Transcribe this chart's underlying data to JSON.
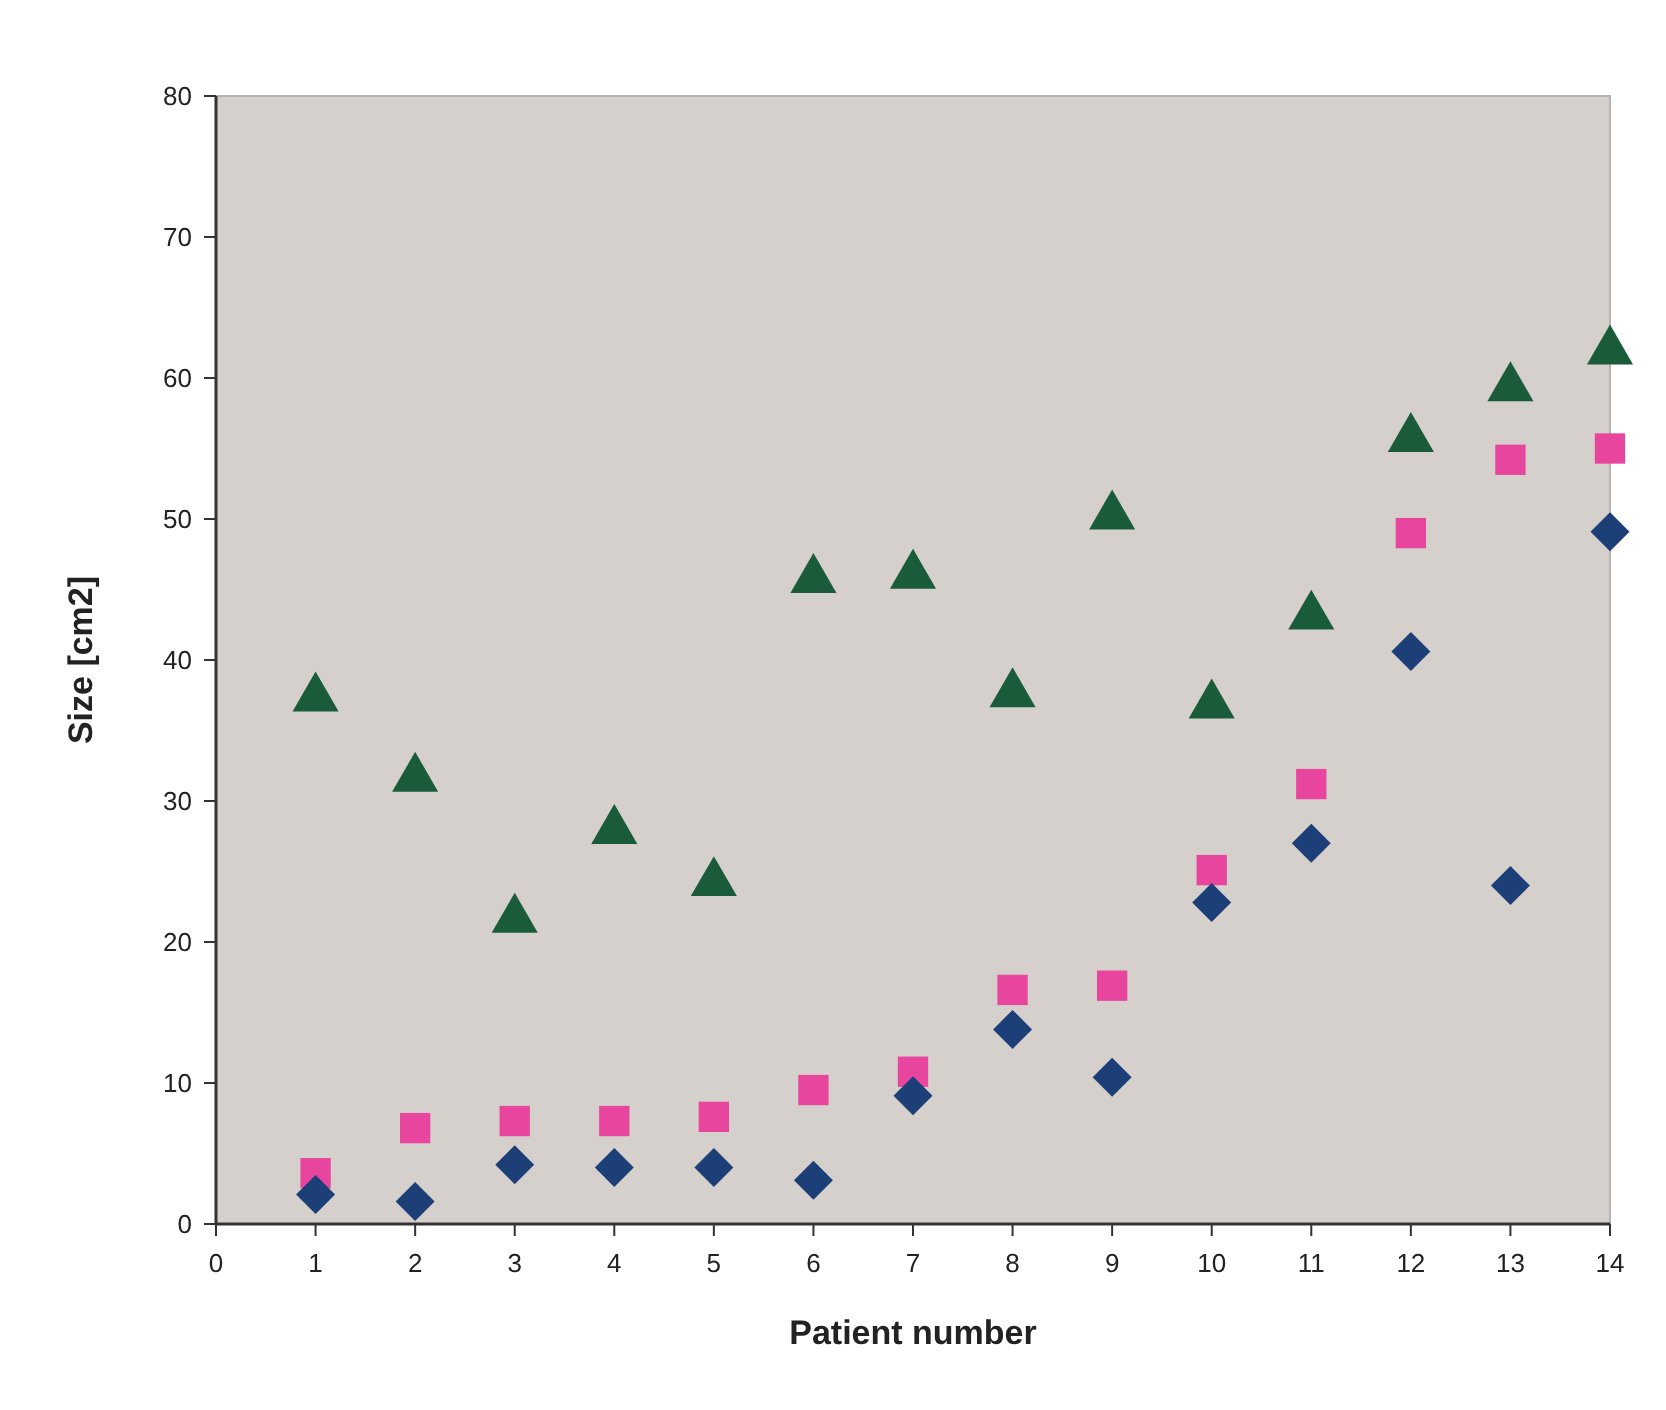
{
  "chart_data": {
    "type": "scatter",
    "xlabel": "Patient number",
    "ylabel": "Size [cm2]",
    "x": [
      1,
      2,
      3,
      4,
      5,
      6,
      7,
      8,
      9,
      10,
      11,
      12,
      13,
      14
    ],
    "xlim": [
      0,
      14
    ],
    "xticks": [
      0,
      1,
      2,
      3,
      4,
      5,
      6,
      7,
      8,
      9,
      10,
      11,
      12,
      13,
      14
    ],
    "ylim": [
      0,
      80
    ],
    "yticks": [
      0,
      10,
      20,
      30,
      40,
      50,
      60,
      70,
      80
    ],
    "grid": false,
    "series": [
      {
        "color": "#1a5c3a",
        "marker": "triangle",
        "values": [
          37.3,
          31.6,
          21.6,
          27.9,
          24.2,
          45.7,
          46.0,
          37.6,
          50.2,
          36.8,
          43.1,
          55.7,
          59.3,
          61.9
        ]
      },
      {
        "color": "#e8459e",
        "marker": "square",
        "values": [
          3.6,
          6.8,
          7.3,
          7.3,
          7.6,
          9.5,
          10.8,
          16.6,
          16.9,
          25.1,
          31.2,
          49.0,
          54.2,
          55.0
        ]
      },
      {
        "color": "#1c3f78",
        "marker": "diamond",
        "values": [
          2.1,
          1.6,
          4.2,
          4.0,
          4.0,
          3.1,
          9.1,
          13.8,
          10.4,
          22.8,
          27.0,
          40.6,
          24.0,
          49.1
        ]
      }
    ]
  }
}
